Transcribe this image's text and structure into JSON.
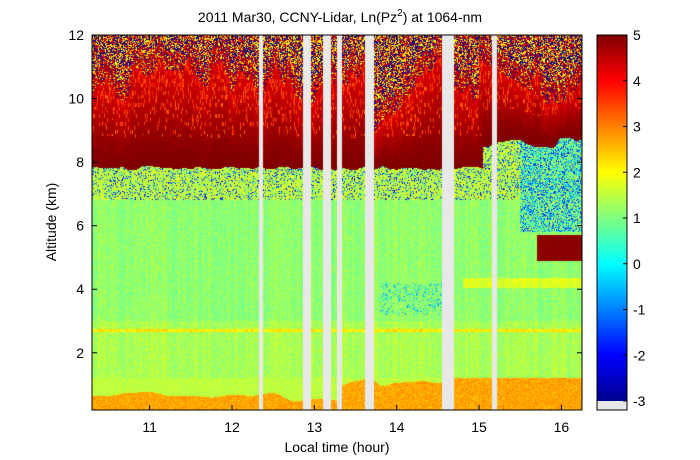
{
  "chart_data": {
    "type": "heatmap",
    "title": {
      "prefix": "2011 Mar30, CCNY-Lidar, Ln(Pz",
      "superscript": "2",
      "suffix": ") at 1064-nm"
    },
    "xlabel": "Local time (hour)",
    "ylabel": "Altitude (km)",
    "xlim": [
      10.3,
      16.25
    ],
    "ylim": [
      0.2,
      12
    ],
    "x_ticks": [
      "11",
      "12",
      "13",
      "14",
      "15",
      "16"
    ],
    "y_ticks": [
      "2",
      "4",
      "6",
      "8",
      "10",
      "12"
    ],
    "colorbar": {
      "range": [
        -3,
        5
      ],
      "ticks": [
        "5",
        "4",
        "3",
        "2",
        "1",
        "0",
        "-1",
        "-2",
        "-3"
      ],
      "colormap": "jet"
    },
    "data_gaps_hours": [
      [
        12.33,
        12.38
      ],
      [
        12.86,
        12.96
      ],
      [
        13.1,
        13.2
      ],
      [
        13.28,
        13.34
      ],
      [
        13.62,
        13.72
      ],
      [
        14.55,
        14.7
      ],
      [
        15.16,
        15.22
      ]
    ],
    "layers": [
      {
        "name": "cirrus cloud base",
        "altitude_km": [
          7.7,
          8.5
        ],
        "ln_pz2": 5
      },
      {
        "name": "cloud plumes top",
        "altitude_km": [
          8.5,
          11.5
        ],
        "ln_pz2": [
          3,
          5
        ]
      },
      {
        "name": "low cloud",
        "time_hours": [
          15.7,
          16.25
        ],
        "altitude_km": [
          4.9,
          5.7
        ],
        "ln_pz2": 5
      },
      {
        "name": "boundary layer aerosol",
        "altitude_km": [
          0.2,
          1.2
        ],
        "ln_pz2": [
          2,
          3
        ]
      },
      {
        "name": "noise above cloud",
        "altitude_km": [
          10.5,
          12
        ],
        "ln_pz2": [
          -3,
          5
        ]
      }
    ],
    "colors": {
      "gap": "#e8e8e8",
      "axis": "#000000"
    }
  }
}
